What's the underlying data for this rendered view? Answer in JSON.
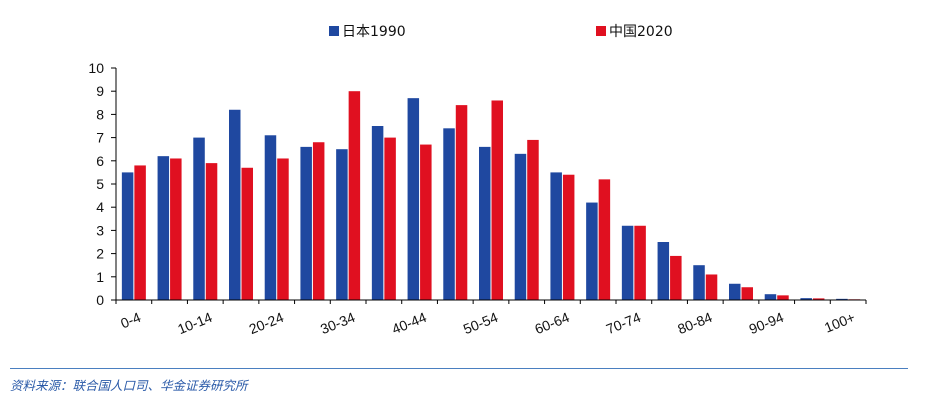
{
  "chart_data": {
    "type": "bar",
    "categories": [
      "0-4",
      "5-9",
      "10-14",
      "15-19",
      "20-24",
      "25-29",
      "30-34",
      "35-39",
      "40-44",
      "45-49",
      "50-54",
      "55-59",
      "60-64",
      "65-69",
      "70-74",
      "75-79",
      "80-84",
      "85-89",
      "90-94",
      "95-99",
      "100+"
    ],
    "category_labels_shown": [
      "0-4",
      "10-14",
      "20-24",
      "30-34",
      "40-44",
      "50-54",
      "60-64",
      "70-74",
      "80-84",
      "90-94",
      "100+"
    ],
    "series": [
      {
        "name": "日本1990",
        "color": "#1f48a0",
        "values": [
          5.5,
          6.2,
          7.0,
          8.2,
          7.1,
          6.6,
          6.5,
          7.5,
          8.7,
          7.4,
          6.6,
          6.3,
          5.5,
          4.2,
          3.2,
          2.5,
          1.5,
          0.7,
          0.25,
          0.08,
          0.05
        ]
      },
      {
        "name": "中国2020",
        "color": "#e01020",
        "values": [
          5.8,
          6.1,
          5.9,
          5.7,
          6.1,
          6.8,
          9.0,
          7.0,
          6.7,
          8.4,
          8.6,
          6.9,
          5.4,
          5.2,
          3.2,
          1.9,
          1.1,
          0.55,
          0.2,
          0.07,
          0.03
        ]
      }
    ],
    "ylim": [
      0,
      10
    ],
    "yticks": [
      "0",
      "1",
      "2",
      "3",
      "4",
      "5",
      "6",
      "7",
      "8",
      "9",
      "10"
    ],
    "legend_position": "top-center",
    "grid": false
  },
  "source": "资料来源：联合国人口司、华金证券研究所"
}
